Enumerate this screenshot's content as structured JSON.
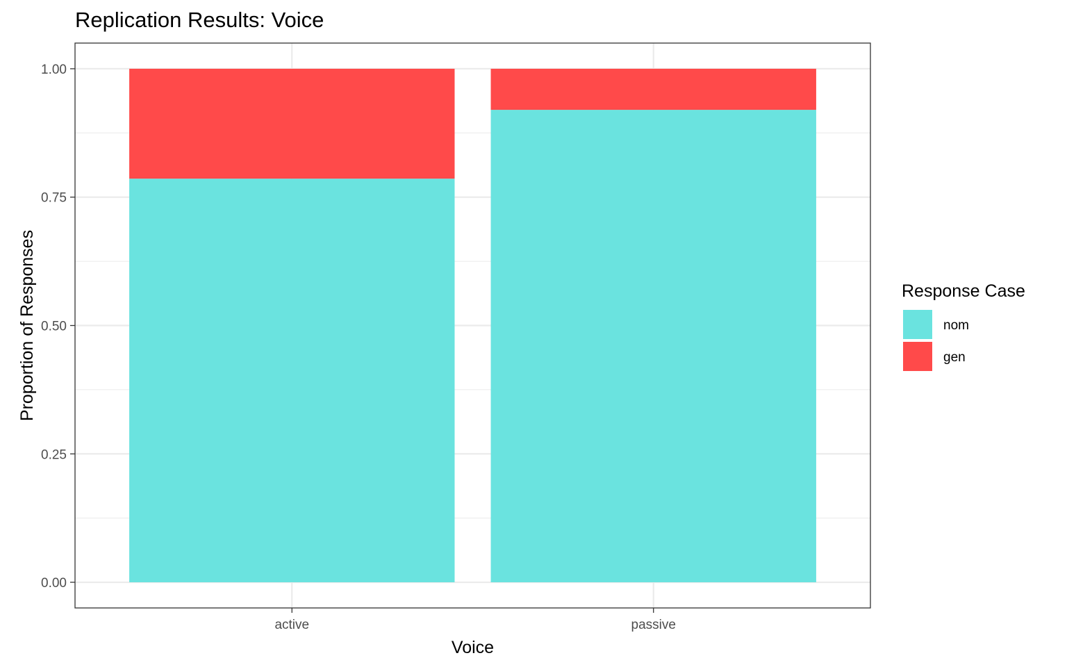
{
  "chart_data": {
    "type": "bar",
    "stacked": true,
    "title": "Replication Results: Voice",
    "xlabel": "Voice",
    "ylabel": "Proportion of Responses",
    "categories": [
      "active",
      "passive"
    ],
    "ylim": [
      -0.05,
      1.05
    ],
    "yticks": [
      "0.00",
      "0.25",
      "0.50",
      "0.75",
      "1.00"
    ],
    "ytick_values": [
      0,
      0.25,
      0.5,
      0.75,
      1.0
    ],
    "series": [
      {
        "name": "nom",
        "color": "#6ae3df",
        "values": [
          0.786,
          0.92
        ]
      },
      {
        "name": "gen",
        "color": "#ff4a4a",
        "values": [
          0.214,
          0.08
        ]
      }
    ],
    "legend": {
      "title": "Response Case",
      "placement": "right",
      "entries": [
        "nom",
        "gen"
      ]
    },
    "grid": true
  }
}
